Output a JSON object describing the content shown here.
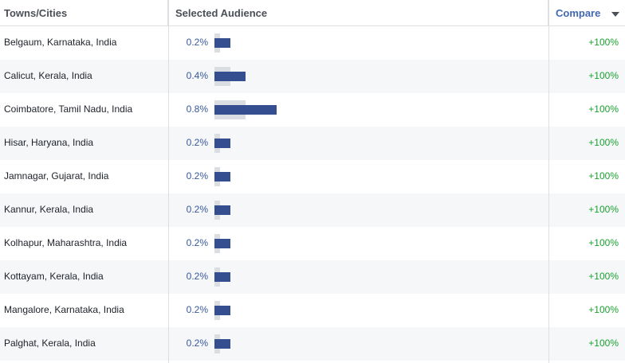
{
  "header": {
    "city_label": "Towns/Cities",
    "audience_label": "Selected Audience",
    "compare_label": "Compare"
  },
  "colors": {
    "bar": "#344e8f",
    "baseline": "#dadde1",
    "percent_text": "#365899",
    "compare_text": "#19a12f",
    "link": "#4267b2"
  },
  "rows": [
    {
      "city": "Belgaum, Karnataka, India",
      "percent": "0.2%",
      "value": 0.2,
      "baseline": 0.05,
      "compare": "+100%"
    },
    {
      "city": "Calicut, Kerala, India",
      "percent": "0.4%",
      "value": 0.4,
      "baseline": 0.2,
      "compare": "+100%"
    },
    {
      "city": "Coimbatore, Tamil Nadu, India",
      "percent": "0.8%",
      "value": 0.8,
      "baseline": 0.4,
      "compare": "+100%"
    },
    {
      "city": "Hisar, Haryana, India",
      "percent": "0.2%",
      "value": 0.2,
      "baseline": 0.05,
      "compare": "+100%"
    },
    {
      "city": "Jamnagar, Gujarat, India",
      "percent": "0.2%",
      "value": 0.2,
      "baseline": 0.05,
      "compare": "+100%"
    },
    {
      "city": "Kannur, Kerala, India",
      "percent": "0.2%",
      "value": 0.2,
      "baseline": 0.05,
      "compare": "+100%"
    },
    {
      "city": "Kolhapur, Maharashtra, India",
      "percent": "0.2%",
      "value": 0.2,
      "baseline": 0.05,
      "compare": "+100%"
    },
    {
      "city": "Kottayam, Kerala, India",
      "percent": "0.2%",
      "value": 0.2,
      "baseline": 0.05,
      "compare": "+100%"
    },
    {
      "city": "Mangalore, Karnataka, India",
      "percent": "0.2%",
      "value": 0.2,
      "baseline": 0.05,
      "compare": "+100%"
    },
    {
      "city": "Palghat, Kerala, India",
      "percent": "0.2%",
      "value": 0.2,
      "baseline": 0.05,
      "compare": "+100%"
    }
  ]
}
